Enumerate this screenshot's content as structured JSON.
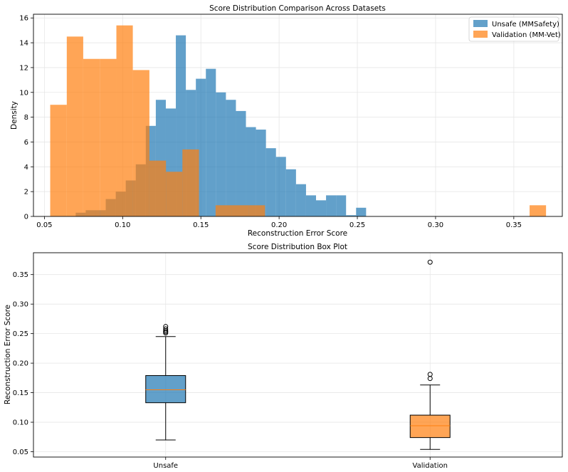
{
  "chart_data": [
    {
      "type": "histogram",
      "title": "Score Distribution Comparison Across Datasets",
      "xlabel": "Reconstruction Error Score",
      "ylabel": "Density",
      "xlim": [
        0.043,
        0.381
      ],
      "ylim": [
        0,
        16.3
      ],
      "xticks": [
        "0.05",
        "0.10",
        "0.15",
        "0.20",
        "0.25",
        "0.30",
        "0.35"
      ],
      "yticks": [
        "0",
        "2",
        "4",
        "6",
        "8",
        "10",
        "12",
        "14",
        "16"
      ],
      "grid": true,
      "legend_position": "top-right",
      "series": [
        {
          "name": "Unsafe (MMSafety)",
          "color": "#1f77b4",
          "alpha": 0.7,
          "bin_edges": [
            0.07,
            0.0764,
            0.0828,
            0.0892,
            0.0956,
            0.102,
            0.1084,
            0.1148,
            0.1212,
            0.1276,
            0.134,
            0.1404,
            0.1468,
            0.1532,
            0.1596,
            0.166,
            0.1724,
            0.1788,
            0.1852,
            0.1916,
            0.198,
            0.2044,
            0.2108,
            0.2172,
            0.2236,
            0.23,
            0.2364,
            0.2428,
            0.2492,
            0.2556,
            0.262
          ],
          "density": [
            0.3,
            0.5,
            0.5,
            1.4,
            2.0,
            2.9,
            4.2,
            7.3,
            9.4,
            8.7,
            14.6,
            10.2,
            11.1,
            11.9,
            10.0,
            9.4,
            8.5,
            7.2,
            7.0,
            5.5,
            4.8,
            3.8,
            2.6,
            1.7,
            1.3,
            1.7,
            1.7,
            0.1,
            0.7,
            0.0
          ]
        },
        {
          "name": "Validation (MM-Vet)",
          "color": "#ff7f0e",
          "alpha": 0.7,
          "bin_edges": [
            0.0537,
            0.0643,
            0.0748,
            0.0854,
            0.096,
            0.1065,
            0.1171,
            0.1277,
            0.1382,
            0.1488,
            0.1594,
            0.1699,
            0.1805,
            0.191,
            0.2016,
            0.2122,
            0.2227,
            0.2333,
            0.2439,
            0.2544,
            0.265,
            0.2756,
            0.2861,
            0.2967,
            0.3073,
            0.3178,
            0.3284,
            0.339,
            0.3495,
            0.3601,
            0.3706
          ],
          "density": [
            9.0,
            14.5,
            12.7,
            12.7,
            15.4,
            11.8,
            4.5,
            3.6,
            5.4,
            0.0,
            0.9,
            0.9,
            0.9,
            0.0,
            0.0,
            0.0,
            0.0,
            0.0,
            0.0,
            0.0,
            0.0,
            0.0,
            0.0,
            0.0,
            0.0,
            0.0,
            0.0,
            0.0,
            0.0,
            0.9
          ]
        }
      ]
    },
    {
      "type": "box",
      "title": "Score Distribution Box Plot",
      "xlabel": "",
      "ylabel": "Reconstruction Error Score",
      "ylim": [
        0.041,
        0.387
      ],
      "yticks": [
        "0.05",
        "0.10",
        "0.15",
        "0.20",
        "0.25",
        "0.30",
        "0.35"
      ],
      "grid": true,
      "categories": [
        "Unsafe",
        "Validation"
      ],
      "boxes": [
        {
          "name": "Unsafe",
          "color": "#1f77b4",
          "whisker_low": 0.07,
          "q1": 0.133,
          "median": 0.155,
          "q3": 0.179,
          "whisker_high": 0.245,
          "outliers": [
            0.251,
            0.253,
            0.255,
            0.258,
            0.262
          ]
        },
        {
          "name": "Validation",
          "color": "#ff7f0e",
          "whisker_low": 0.054,
          "q1": 0.074,
          "median": 0.094,
          "q3": 0.112,
          "whisker_high": 0.163,
          "outliers": [
            0.174,
            0.181,
            0.371
          ]
        }
      ]
    }
  ]
}
